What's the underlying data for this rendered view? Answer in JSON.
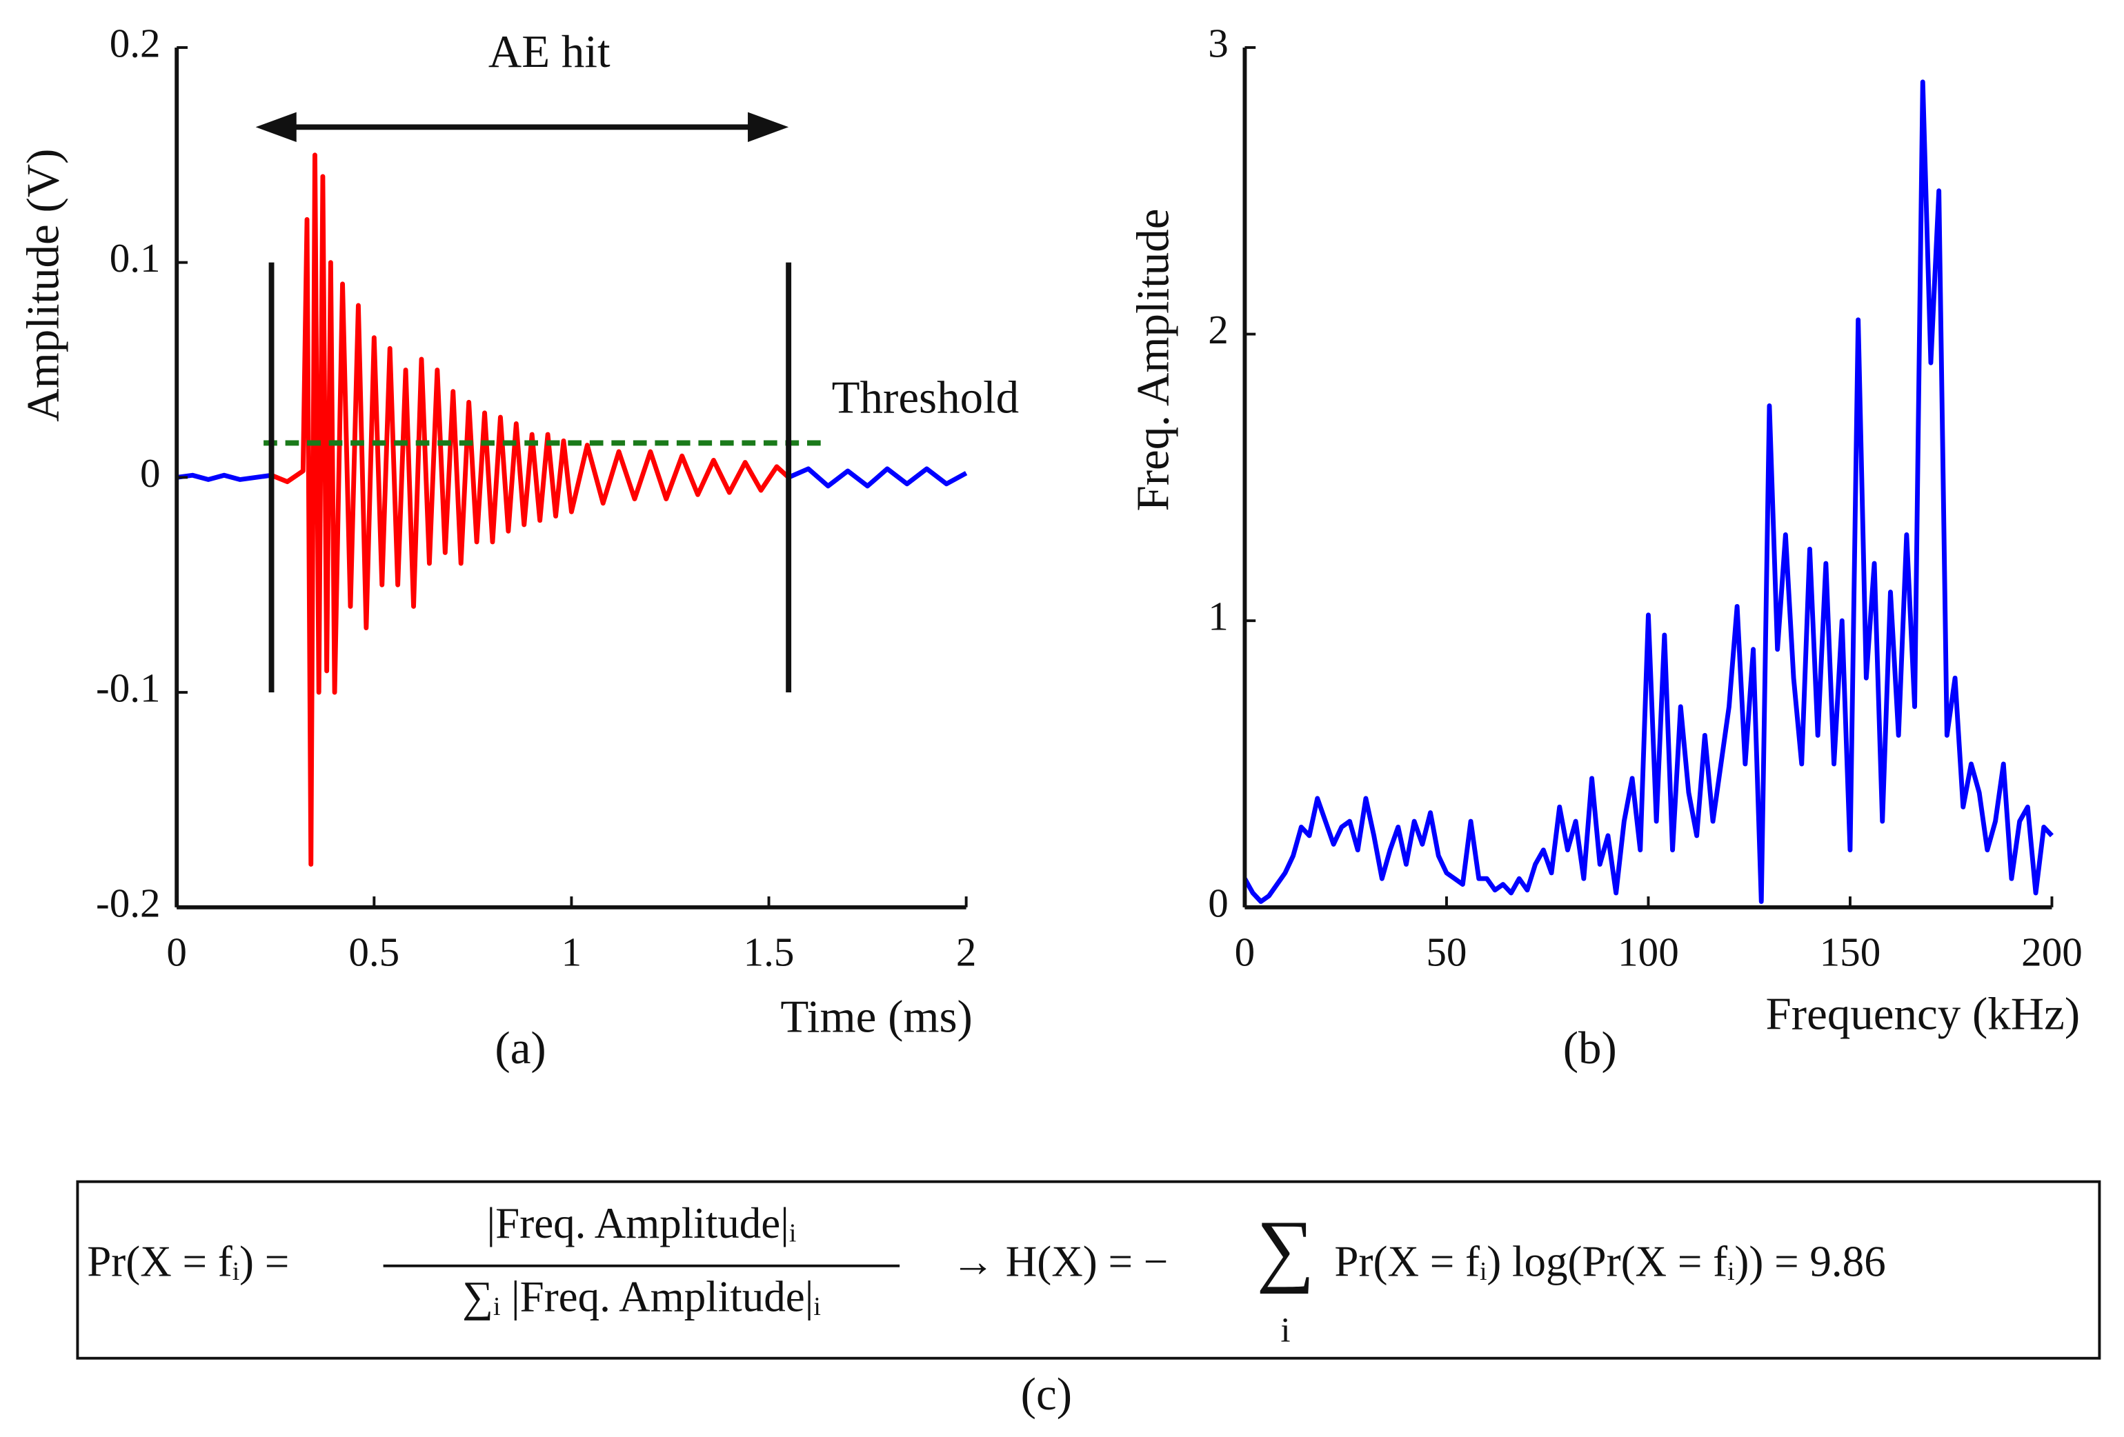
{
  "chart_data": [
    {
      "type": "line",
      "caption": "(a)",
      "xlabel": "Time (ms)",
      "ylabel": "Amplitude (V)",
      "xlim": [
        0,
        2
      ],
      "ylim": [
        -0.2,
        0.2
      ],
      "xticks": [
        0,
        0.5,
        1,
        1.5,
        2
      ],
      "yticks": [
        -0.2,
        -0.1,
        0,
        0.1,
        0.2
      ],
      "series": [
        {
          "color": "#0000ff",
          "x": [
            0,
            0.04,
            0.08,
            0.12,
            0.16,
            0.2,
            0.24
          ],
          "values": [
            0,
            0.001,
            -0.001,
            0.001,
            -0.001,
            0,
            0.001
          ]
        },
        {
          "color": "#ff0000",
          "x": [
            0.24,
            0.28,
            0.32,
            0.33,
            0.34,
            0.35,
            0.36,
            0.37,
            0.38,
            0.39,
            0.4,
            0.42,
            0.44,
            0.46,
            0.48,
            0.5,
            0.52,
            0.54,
            0.56,
            0.58,
            0.6,
            0.62,
            0.64,
            0.66,
            0.68,
            0.7,
            0.72,
            0.74,
            0.76,
            0.78,
            0.8,
            0.82,
            0.84,
            0.86,
            0.88,
            0.9,
            0.92,
            0.94,
            0.96,
            0.98,
            1.0,
            1.04,
            1.08,
            1.12,
            1.16,
            1.2,
            1.24,
            1.28,
            1.32,
            1.36,
            1.4,
            1.44,
            1.48,
            1.52,
            1.55
          ],
          "values": [
            0.001,
            -0.002,
            0.003,
            0.12,
            -0.18,
            0.15,
            -0.1,
            0.14,
            -0.09,
            0.1,
            -0.1,
            0.09,
            -0.06,
            0.08,
            -0.07,
            0.065,
            -0.05,
            0.06,
            -0.05,
            0.05,
            -0.06,
            0.055,
            -0.04,
            0.05,
            -0.035,
            0.04,
            -0.04,
            0.035,
            -0.03,
            0.03,
            -0.03,
            0.028,
            -0.025,
            0.025,
            -0.022,
            0.02,
            -0.02,
            0.02,
            -0.018,
            0.017,
            -0.016,
            0.015,
            -0.012,
            0.012,
            -0.01,
            0.012,
            -0.01,
            0.01,
            -0.008,
            0.008,
            -0.007,
            0.007,
            -0.006,
            0.005,
            0
          ]
        },
        {
          "color": "#0000ff",
          "x": [
            1.55,
            1.6,
            1.65,
            1.7,
            1.75,
            1.8,
            1.85,
            1.9,
            1.95,
            2.0
          ],
          "values": [
            0,
            0.004,
            -0.004,
            0.003,
            -0.004,
            0.004,
            -0.003,
            0.004,
            -0.003,
            0.002
          ]
        }
      ],
      "threshold": {
        "text": "Threshold",
        "value": 0.016,
        "x": [
          0.22,
          1.65
        ],
        "color": "#1a7a1a"
      },
      "markers": [
        {
          "x": 0.24,
          "y": [
            -0.1,
            0.1
          ]
        },
        {
          "x": 1.55,
          "y": [
            -0.1,
            0.1
          ]
        }
      ],
      "arrow": {
        "text": "AE hit",
        "x": [
          0.2,
          1.55
        ],
        "y": 0.163
      }
    },
    {
      "type": "line",
      "caption": "(b)",
      "xlabel": "Frequency (kHz)",
      "ylabel": "Freq. Amplitude",
      "xlim": [
        0,
        200
      ],
      "ylim": [
        0,
        3
      ],
      "xticks": [
        0,
        50,
        100,
        150,
        200
      ],
      "yticks": [
        0,
        1,
        2,
        3
      ],
      "series": [
        {
          "color": "#0000ff",
          "x": [
            0,
            2,
            4,
            6,
            8,
            10,
            12,
            14,
            16,
            18,
            20,
            22,
            24,
            26,
            28,
            30,
            32,
            34,
            36,
            38,
            40,
            42,
            44,
            46,
            48,
            50,
            52,
            54,
            56,
            58,
            60,
            62,
            64,
            66,
            68,
            70,
            72,
            74,
            76,
            78,
            80,
            82,
            84,
            86,
            88,
            90,
            92,
            94,
            96,
            98,
            100,
            102,
            104,
            106,
            108,
            110,
            112,
            114,
            116,
            118,
            120,
            122,
            124,
            126,
            128,
            130,
            132,
            134,
            136,
            138,
            140,
            142,
            144,
            146,
            148,
            150,
            152,
            154,
            156,
            158,
            160,
            162,
            164,
            166,
            168,
            170,
            172,
            174,
            176,
            178,
            180,
            182,
            184,
            186,
            188,
            190,
            192,
            194,
            196,
            198,
            200
          ],
          "values": [
            0.1,
            0.05,
            0.02,
            0.04,
            0.08,
            0.12,
            0.18,
            0.28,
            0.25,
            0.38,
            0.3,
            0.22,
            0.28,
            0.3,
            0.2,
            0.38,
            0.25,
            0.1,
            0.2,
            0.28,
            0.15,
            0.3,
            0.22,
            0.33,
            0.18,
            0.12,
            0.1,
            0.08,
            0.3,
            0.1,
            0.1,
            0.06,
            0.08,
            0.05,
            0.1,
            0.06,
            0.15,
            0.2,
            0.12,
            0.35,
            0.2,
            0.3,
            0.1,
            0.45,
            0.15,
            0.25,
            0.05,
            0.3,
            0.45,
            0.2,
            1.02,
            0.3,
            0.95,
            0.2,
            0.7,
            0.4,
            0.25,
            0.6,
            0.3,
            0.5,
            0.7,
            1.05,
            0.5,
            0.9,
            0.02,
            1.75,
            0.9,
            1.3,
            0.8,
            0.5,
            1.25,
            0.6,
            1.2,
            0.5,
            1.0,
            0.2,
            2.05,
            0.8,
            1.2,
            0.3,
            1.1,
            0.6,
            1.3,
            0.7,
            2.88,
            1.9,
            2.5,
            0.6,
            0.8,
            0.35,
            0.5,
            0.4,
            0.2,
            0.3,
            0.5,
            0.1,
            0.3,
            0.35,
            0.05,
            0.28,
            0.25
          ]
        }
      ]
    }
  ],
  "formula": {
    "lhs": "Pr(X = fᵢ) =",
    "numerator": "|Freq.  Amplitude|ᵢ",
    "denominator": "∑ᵢ |Freq.  Amplitude|ᵢ",
    "middle": "→  H(X) = −",
    "sum": "∑",
    "index": "i",
    "rhs": "Pr(X = fᵢ) log(Pr(X = fᵢ)) = 9.86",
    "caption": "(c)"
  }
}
